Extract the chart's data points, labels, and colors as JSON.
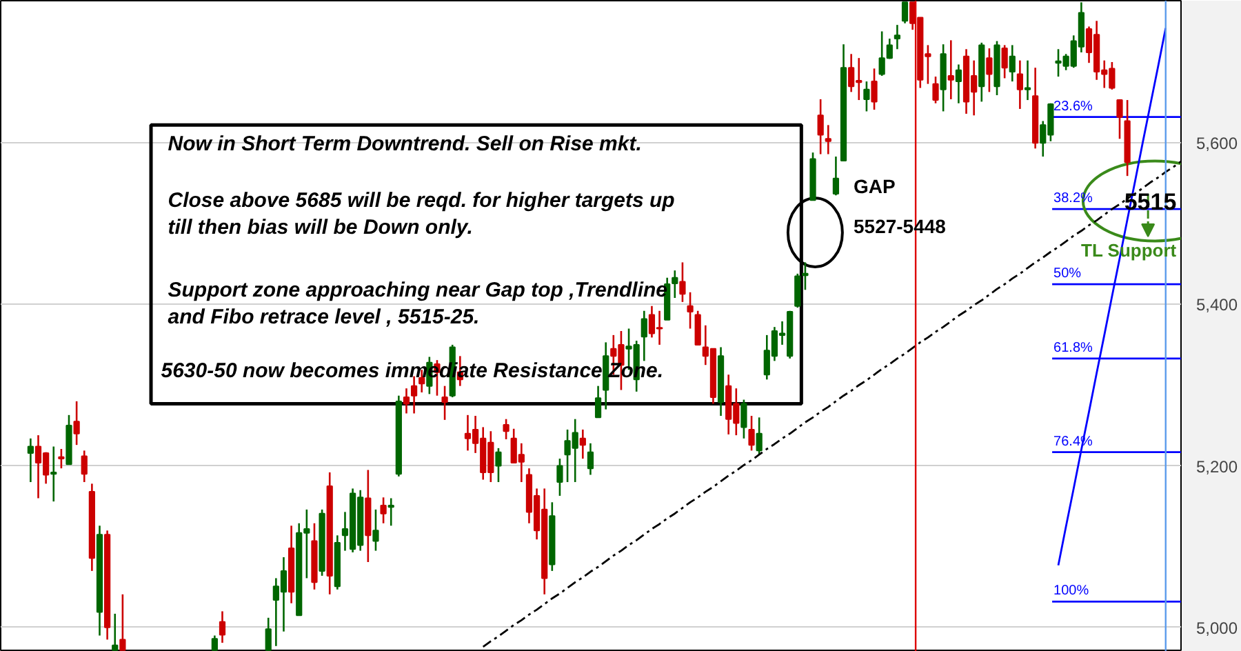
{
  "chart_data": {
    "type": "candlestick",
    "categories": [
      null,
      null,
      null,
      null,
      null,
      null,
      null,
      null,
      null,
      null,
      null,
      null,
      null,
      null,
      null,
      null,
      null,
      null,
      null,
      null,
      null,
      null,
      null,
      null,
      null,
      null,
      null,
      null,
      null,
      null,
      null,
      null,
      null,
      null,
      null,
      null,
      null,
      null,
      null,
      null,
      null,
      null,
      null,
      null,
      null,
      null,
      null,
      null,
      null,
      null,
      null,
      null,
      null,
      null,
      null,
      null,
      null,
      null,
      null,
      null,
      null,
      null,
      null,
      null,
      null,
      null,
      null,
      null,
      null,
      null,
      null,
      null,
      null,
      null,
      null,
      null,
      null,
      null,
      null,
      null,
      null,
      null,
      null,
      null,
      null,
      null,
      null,
      null,
      null,
      null,
      null,
      null,
      null,
      null,
      null,
      null,
      null,
      null,
      null,
      null,
      null,
      null,
      null,
      null,
      null,
      null,
      null,
      null,
      null,
      null,
      null,
      null,
      null,
      null,
      null,
      null,
      null,
      null,
      null,
      null,
      null,
      null,
      null,
      null,
      null,
      null,
      null,
      null,
      null,
      null,
      null,
      null,
      null,
      null,
      null,
      null,
      null,
      null,
      null,
      null,
      null,
      null,
      null,
      null,
      null,
      null,
      null,
      null,
      null,
      null,
      null
    ],
    "ohlc": [
      [
        5216,
        5234,
        5180,
        5224
      ],
      [
        5224,
        5238,
        5160,
        5204
      ],
      [
        5216,
        5217,
        5178,
        5189
      ],
      [
        5190,
        5224,
        5156,
        5192
      ],
      [
        5211,
        5221,
        5197,
        5209
      ],
      [
        5202,
        5263,
        5202,
        5250
      ],
      [
        5255,
        5280,
        5226,
        5240
      ],
      [
        5212,
        5219,
        5180,
        5190
      ],
      [
        5168,
        5178,
        5070,
        5086
      ],
      [
        5019,
        5126,
        4990,
        5115
      ],
      [
        5115,
        5120,
        4985,
        5000
      ],
      [
        4972,
        5017,
        4972,
        4978
      ],
      [
        4985,
        5041,
        4972,
        4972
      ],
      null,
      null,
      null,
      null,
      null,
      null,
      null,
      null,
      null,
      null,
      null,
      [
        4972,
        4990,
        4972,
        4986
      ],
      [
        5007,
        5020,
        4981,
        4991
      ],
      null,
      null,
      null,
      null,
      null,
      [
        4972,
        5012,
        4972,
        4998
      ],
      [
        5034,
        5061,
        4977,
        5051
      ],
      [
        5044,
        5087,
        4995,
        5070
      ],
      [
        5098,
        5126,
        5030,
        5044
      ],
      [
        5015,
        5129,
        5015,
        5117
      ],
      [
        5117,
        5146,
        5061,
        5122
      ],
      [
        5107,
        5129,
        5047,
        5056
      ],
      [
        5070,
        5146,
        5064,
        5141
      ],
      [
        5175,
        5192,
        5041,
        5064
      ],
      [
        5051,
        5114,
        5047,
        5105
      ],
      [
        5114,
        5143,
        5095,
        5122
      ],
      [
        5097,
        5172,
        5093,
        5166
      ],
      [
        5102,
        5170,
        5095,
        5161
      ],
      [
        5160,
        5195,
        5081,
        5114
      ],
      [
        5107,
        5146,
        5095,
        5120
      ],
      [
        5151,
        5161,
        5129,
        5141
      ],
      [
        5149,
        5160,
        5126,
        5151
      ],
      [
        5190,
        5287,
        5187,
        5280
      ],
      [
        5285,
        5296,
        5265,
        5277
      ],
      [
        5299,
        5311,
        5265,
        5287
      ],
      [
        5309,
        5319,
        5291,
        5302
      ],
      [
        5299,
        5335,
        5289,
        5328
      ],
      [
        5326,
        5331,
        5287,
        5316
      ],
      [
        5285,
        5299,
        5257,
        5279
      ],
      [
        5287,
        5350,
        5285,
        5347
      ],
      [
        5316,
        5336,
        5299,
        5307
      ],
      [
        5240,
        5263,
        5219,
        5234
      ],
      [
        5245,
        5262,
        5216,
        5228
      ],
      [
        5234,
        5248,
        5183,
        5192
      ],
      [
        5229,
        5243,
        5180,
        5192
      ],
      [
        5200,
        5222,
        5180,
        5217
      ],
      [
        5251,
        5258,
        5233,
        5243
      ],
      [
        5234,
        5246,
        5204,
        5204
      ],
      [
        5214,
        5228,
        5180,
        5205
      ],
      [
        5189,
        5197,
        5129,
        5143
      ],
      [
        5163,
        5172,
        5109,
        5120
      ],
      [
        5146,
        5172,
        5041,
        5061
      ],
      [
        5078,
        5155,
        5070,
        5138
      ],
      [
        5180,
        5209,
        5163,
        5200
      ],
      [
        5214,
        5245,
        5180,
        5231
      ],
      [
        5222,
        5258,
        5180,
        5241
      ],
      [
        5234,
        5245,
        5209,
        5226
      ],
      [
        5197,
        5228,
        5189,
        5217
      ],
      [
        5260,
        5299,
        5260,
        5284
      ],
      [
        5294,
        5353,
        5270,
        5336
      ],
      [
        5345,
        5362,
        5313,
        5336
      ],
      [
        5350,
        5367,
        5294,
        5325
      ],
      [
        5345,
        5370,
        5319,
        5348
      ],
      [
        5307,
        5355,
        5292,
        5350
      ],
      [
        5360,
        5392,
        5330,
        5382
      ],
      [
        5387,
        5398,
        5359,
        5364
      ],
      [
        5371,
        5392,
        5350,
        5370
      ],
      [
        5381,
        5433,
        5381,
        5425
      ],
      [
        5426,
        5442,
        5408,
        5433
      ],
      [
        5428,
        5452,
        5403,
        5413
      ],
      [
        5398,
        5415,
        5370,
        5391
      ],
      [
        5387,
        5392,
        5350,
        5350
      ],
      [
        5347,
        5374,
        5325,
        5336
      ],
      [
        5345,
        5345,
        5277,
        5285
      ],
      [
        5279,
        5347,
        5262,
        5336
      ],
      [
        5299,
        5313,
        5239,
        5258
      ],
      [
        5277,
        5296,
        5238,
        5253
      ],
      [
        5248,
        5282,
        5234,
        5277
      ],
      [
        5245,
        5262,
        5219,
        5226
      ],
      [
        5219,
        5260,
        5214,
        5240
      ],
      [
        5313,
        5362,
        5307,
        5343
      ],
      [
        5336,
        5372,
        5330,
        5367
      ],
      [
        5362,
        5379,
        5350,
        5364
      ],
      [
        5336,
        5392,
        5333,
        5391
      ],
      [
        5398,
        5438,
        5396,
        5435
      ],
      [
        5436,
        5452,
        5418,
        5438
      ],
      [
        5529,
        5588,
        5529,
        5580
      ],
      [
        5634,
        5654,
        5586,
        5610
      ],
      [
        5605,
        5622,
        5586,
        5602
      ],
      [
        5537,
        5583,
        5535,
        5556
      ],
      [
        5578,
        5722,
        5578,
        5693
      ],
      [
        5693,
        5710,
        5663,
        5670
      ],
      [
        5677,
        5705,
        5653,
        5675
      ],
      [
        5654,
        5676,
        5639,
        5666
      ],
      [
        5676,
        5692,
        5641,
        5651
      ],
      [
        5685,
        5738,
        5683,
        5705
      ],
      [
        5705,
        5729,
        5704,
        5721
      ],
      [
        5729,
        5746,
        5716,
        5733
      ],
      [
        5751,
        5774,
        5748,
        5774
      ],
      [
        5774,
        5774,
        5740,
        5748
      ],
      [
        5755,
        5755,
        5668,
        5678
      ],
      [
        5710,
        5721,
        5673,
        5707
      ],
      [
        5673,
        5682,
        5649,
        5653
      ],
      [
        5666,
        5722,
        5639,
        5710
      ],
      [
        5683,
        5727,
        5654,
        5678
      ],
      [
        5676,
        5697,
        5649,
        5690
      ],
      [
        5707,
        5716,
        5636,
        5651
      ],
      [
        5683,
        5702,
        5634,
        5663
      ],
      [
        5670,
        5724,
        5651,
        5721
      ],
      [
        5705,
        5717,
        5663,
        5685
      ],
      [
        5670,
        5726,
        5659,
        5721
      ],
      [
        5717,
        5721,
        5680,
        5693
      ],
      [
        5688,
        5721,
        5676,
        5707
      ],
      [
        5685,
        5702,
        5642,
        5666
      ],
      [
        5666,
        5702,
        5653,
        5668
      ],
      [
        5658,
        5693,
        5593,
        5600
      ],
      [
        5600,
        5627,
        5583,
        5622
      ],
      [
        5610,
        5649,
        5602,
        5648
      ],
      [
        5699,
        5716,
        5682,
        5701
      ],
      [
        5695,
        5710,
        5690,
        5707
      ],
      [
        5695,
        5733,
        5693,
        5726
      ],
      [
        5719,
        5774,
        5712,
        5761
      ],
      [
        5741,
        5744,
        5699,
        5712
      ],
      [
        5734,
        5751,
        5678,
        5688
      ],
      [
        5690,
        5702,
        5668,
        5685
      ],
      [
        5692,
        5700,
        5666,
        5668
      ],
      [
        5653,
        5654,
        5605,
        5632
      ],
      [
        5627,
        5653,
        5559,
        5576
      ],
      null,
      null,
      null,
      null,
      null,
      null,
      null
    ],
    "colors": [
      "#006600",
      "#cc0000",
      "#cc0000",
      "#006600",
      "#cc0000",
      "#006600",
      "#cc0000",
      "#cc0000",
      "#cc0000",
      "#006600",
      "#cc0000",
      "#006600",
      "#cc0000",
      null,
      null,
      null,
      null,
      null,
      null,
      null,
      null,
      null,
      null,
      null,
      "#006600",
      "#cc0000",
      null,
      null,
      null,
      null,
      null,
      "#006600",
      "#006600",
      "#006600",
      "#cc0000",
      "#006600",
      "#006600",
      "#cc0000",
      "#006600",
      "#cc0000",
      "#006600",
      "#006600",
      "#006600",
      "#006600",
      "#cc0000",
      "#006600",
      "#cc0000",
      "#006600",
      "#006600",
      "#cc0000",
      "#cc0000",
      "#cc0000",
      "#006600",
      "#cc0000",
      "#cc0000",
      "#006600",
      "#cc0000",
      "#cc0000",
      "#cc0000",
      "#cc0000",
      "#cc0000",
      "#006600",
      "#cc0000",
      "#cc0000",
      "#cc0000",
      "#cc0000",
      "#cc0000",
      "#cc0000",
      "#006600",
      "#006600",
      "#006600",
      "#006600",
      "#cc0000",
      "#006600",
      "#006600",
      "#006600",
      "#cc0000",
      "#cc0000",
      "#006600",
      "#006600",
      "#006600",
      "#cc0000",
      "#cc0000",
      "#006600",
      "#006600",
      "#cc0000",
      "#cc0000",
      "#cc0000",
      "#cc0000",
      "#cc0000",
      "#006600",
      "#cc0000",
      "#cc0000",
      "#006600",
      "#cc0000",
      "#006600",
      "#006600",
      "#006600",
      "#006600",
      "#006600",
      "#006600",
      "#006600",
      "#006600",
      "#cc0000",
      "#cc0000",
      "#006600",
      "#006600",
      "#cc0000",
      "#cc0000",
      "#006600",
      "#cc0000",
      "#006600",
      "#006600",
      "#006600",
      "#006600",
      "#cc0000",
      "#cc0000",
      "#cc0000",
      "#cc0000",
      "#006600",
      "#cc0000",
      "#006600",
      "#cc0000",
      "#cc0000",
      "#006600",
      "#cc0000",
      "#006600",
      "#cc0000",
      "#006600",
      "#cc0000",
      "#006600",
      "#cc0000",
      "#006600",
      "#006600",
      "#006600",
      "#006600",
      "#006600",
      "#006600",
      "#cc0000",
      "#cc0000",
      "#cc0000",
      "#cc0000",
      "#cc0000",
      "#cc0000",
      null,
      null,
      null,
      null,
      null,
      null,
      null
    ],
    "series": [
      {
        "type": "line",
        "color": "#000000",
        "line_style": "dashed",
        "values": [
          null,
          null,
          null,
          null,
          null,
          null,
          null,
          null,
          null,
          null,
          null,
          null,
          null,
          null,
          null,
          null,
          null,
          null,
          null,
          null,
          null,
          null,
          null,
          null,
          null,
          null,
          null,
          null,
          null,
          null,
          null,
          null,
          null,
          null,
          null,
          null,
          null,
          null,
          null,
          null,
          null,
          null,
          null,
          null,
          null,
          null,
          null,
          null,
          null,
          null,
          null,
          null,
          null,
          null,
          null,
          null,
          null,
          null,
          null,
          4976,
          4983,
          4989,
          4996,
          5003,
          5009,
          5016,
          5022,
          5029,
          5036,
          5042,
          5049,
          5056,
          5062,
          5069,
          5075,
          5082,
          5089,
          5095,
          5102,
          5108,
          5115,
          5122,
          5128,
          5135,
          5141,
          5148,
          5155,
          5161,
          5168,
          5174,
          5181,
          5188,
          5194,
          5201,
          5207,
          5214,
          5221,
          5227,
          5234,
          5240,
          5247,
          5254,
          5260,
          5267,
          5273,
          5280,
          5287,
          5293,
          5300,
          5306,
          5313,
          5320,
          5326,
          5333,
          5339,
          5346,
          5353,
          5359,
          5366,
          5372,
          5379,
          5386,
          5392,
          5399,
          5405,
          5412,
          5419,
          5425,
          5432,
          5438,
          5445,
          5452,
          5458,
          5465,
          5471,
          5478,
          5485,
          5491,
          5498,
          5504,
          5511,
          5518,
          5524,
          5531,
          5537,
          5544,
          5551,
          5557,
          5564,
          5570,
          5577
        ]
      },
      {
        "type": "line",
        "color": "#0000ff",
        "values": [
          null,
          null,
          null,
          null,
          null,
          null,
          null,
          null,
          null,
          null,
          null,
          null,
          null,
          null,
          null,
          null,
          null,
          null,
          null,
          null,
          null,
          null,
          null,
          null,
          null,
          null,
          null,
          null,
          null,
          null,
          null,
          null,
          null,
          null,
          null,
          null,
          null,
          null,
          null,
          null,
          null,
          null,
          null,
          null,
          null,
          null,
          null,
          null,
          null,
          null,
          null,
          null,
          null,
          null,
          null,
          null,
          null,
          null,
          null,
          null,
          null,
          null,
          null,
          null,
          null,
          null,
          null,
          null,
          null,
          null,
          null,
          null,
          null,
          null,
          null,
          null,
          null,
          null,
          null,
          null,
          null,
          null,
          null,
          null,
          null,
          null,
          null,
          null,
          null,
          null,
          null,
          null,
          null,
          null,
          null,
          null,
          null,
          null,
          null,
          null,
          null,
          null,
          null,
          null,
          null,
          null,
          null,
          null,
          null,
          null,
          null,
          null,
          null,
          null,
          null,
          null,
          null,
          null,
          null,
          null,
          null,
          null,
          null,
          null,
          null,
          null,
          null,
          null,
          null,
          null,
          null,
          null,
          null,
          null,
          5077,
          5125,
          5172,
          5220,
          5267,
          5315,
          5362,
          5410,
          5457,
          5505,
          5552,
          5600,
          5647,
          5694,
          5742,
          null,
          null
        ]
      }
    ],
    "ref_lines": [
      {
        "axis": "y",
        "value": 5632,
        "color": "#0000ff"
      },
      {
        "axis": "y",
        "value": 5518,
        "color": "#0000ff"
      },
      {
        "axis": "y",
        "value": 5425,
        "color": "#0000ff"
      },
      {
        "axis": "y",
        "value": 5333,
        "color": "#0000ff"
      },
      {
        "axis": "y",
        "value": 5217,
        "color": "#0000ff"
      },
      {
        "axis": "y",
        "value": 5032,
        "color": "#0000ff"
      }
    ],
    "annotations": [
      "Now in Short Term Downtrend. Sell on Rise mkt.",
      "Close above 5685 will be reqd. for higher targets up\ntill then bias will be Down only.",
      "Support zone approaching near Gap top ,Trendline\nand Fibo retrace level , 5515-25.",
      "5630-50 now becomes immediate Resistance Zone.",
      "GAP",
      "5527-5448",
      "5515",
      "TL Support",
      {
        "text": "23.6%",
        "y": 5632
      },
      {
        "text": "38.2%",
        "y": 5518
      },
      {
        "text": "50%",
        "y": 5425
      },
      {
        "text": "61.8%",
        "y": 5333
      },
      {
        "text": "76.4%",
        "y": 5217
      },
      {
        "text": "100%",
        "y": 5032
      }
    ],
    "ylim": [
      4970,
      5776
    ],
    "yticks": [
      {
        "value": 5000,
        "label": "5,000"
      },
      {
        "value": 5200,
        "label": "5,200"
      },
      {
        "value": 5400,
        "label": "5,400"
      },
      {
        "value": 5600,
        "label": "5,600"
      }
    ],
    "tick_labels": "y",
    "grid": "y"
  }
}
